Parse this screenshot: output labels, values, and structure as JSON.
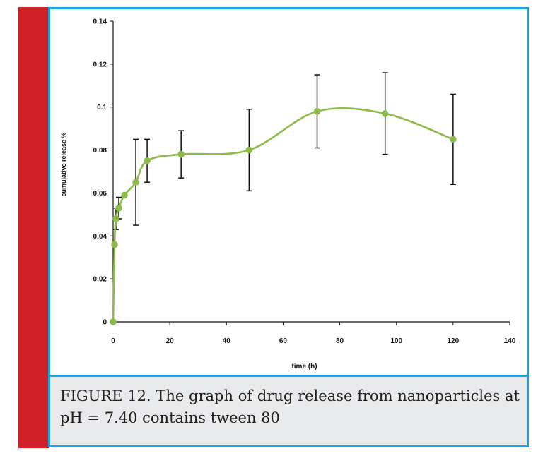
{
  "caption": "FIGURE 12. The graph of drug release from nanoparticles at pH = 7.40 contains tween 80",
  "colors": {
    "left_strip": "#cf2027",
    "frame": "#1ba2e0",
    "caption_bg": "#e9eaeb",
    "series": "#8dba4a"
  },
  "chart_data": {
    "type": "line",
    "xlabel": "time (h)",
    "ylabel": "cumulative release %",
    "xlim": [
      0,
      140
    ],
    "ylim": [
      0,
      0.14
    ],
    "xticks": [
      0,
      20,
      40,
      60,
      80,
      100,
      120,
      140
    ],
    "xtick_labels": [
      "0",
      "20",
      "40",
      "60",
      "80",
      "100",
      "120",
      "140"
    ],
    "yticks": [
      0,
      0.02,
      0.04,
      0.06,
      0.08,
      0.1,
      0.12,
      0.14
    ],
    "ytick_labels": [
      "0",
      "0.02",
      "0.04",
      "0.06",
      "0.08",
      "0.1",
      "0.12",
      "0.14"
    ],
    "smooth": true,
    "grid": false,
    "legend": "none",
    "series": [
      {
        "x": [
          0,
          0.5,
          1,
          2,
          4,
          8,
          12,
          24,
          48,
          72,
          96,
          120
        ],
        "y": [
          0,
          0.036,
          0.048,
          0.053,
          0.059,
          0.065,
          0.075,
          0.078,
          0.08,
          0.098,
          0.097,
          0.085
        ],
        "error": [
          0,
          0,
          0.005,
          0.005,
          0,
          0.02,
          0.01,
          0.011,
          0.019,
          0.017,
          0.019,
          0.021
        ]
      }
    ]
  }
}
